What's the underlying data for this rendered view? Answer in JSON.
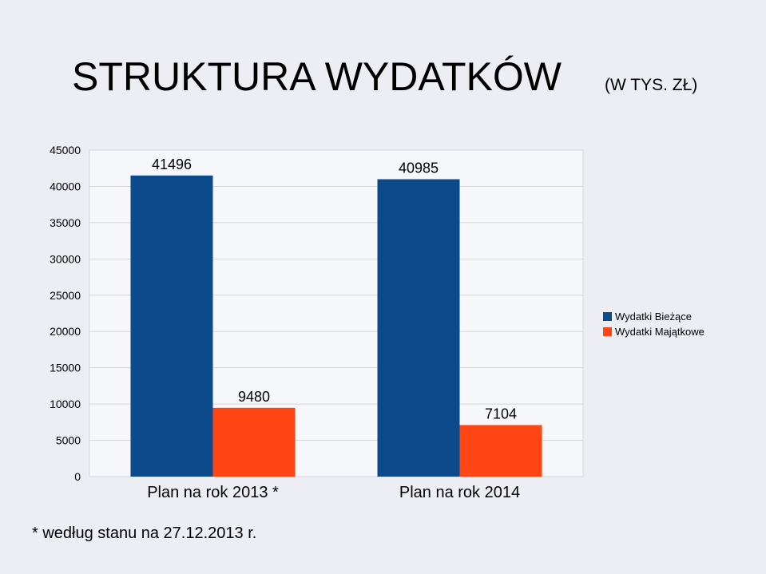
{
  "chart_data": {
    "type": "bar",
    "title": "STRUKTURA WYDATKÓW",
    "subtitle": "(W TYS. ZŁ)",
    "categories": [
      "Plan na rok 2013 *",
      "Plan na rok 2014"
    ],
    "series": [
      {
        "name": "Wydatki Bieżące",
        "color": "#0d4a8c",
        "values": [
          41496,
          40985
        ]
      },
      {
        "name": "Wydatki Majątkowe",
        "color": "#ff4513",
        "values": [
          9480,
          7104
        ]
      }
    ],
    "ylim": [
      0,
      45000
    ],
    "yticks": [
      0,
      5000,
      10000,
      15000,
      20000,
      25000,
      30000,
      35000,
      40000,
      45000
    ],
    "grid": true,
    "legend": "right",
    "annotations": [
      "* według stanu na 27.12.2013 r."
    ]
  }
}
